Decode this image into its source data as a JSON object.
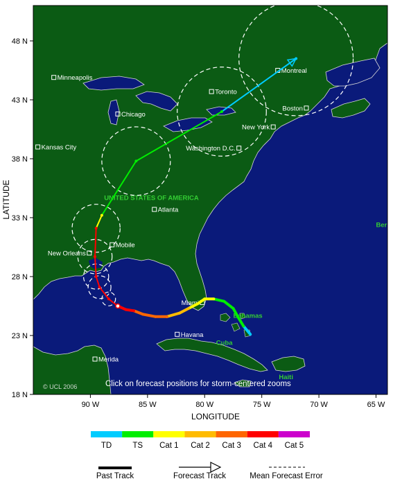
{
  "map": {
    "lon_range": [
      -95,
      -64
    ],
    "lat_range": [
      18,
      51
    ],
    "colors": {
      "ocean": "#0a1a7a",
      "land": "#0b5b14",
      "border": "#d8d8d8"
    },
    "note": "Click on forecast positions for storm-centered zooms",
    "copyright": "© UCL 2006"
  },
  "axes": {
    "x_title": "LONGITUDE",
    "y_title": "LATITUDE",
    "x_ticks": [
      {
        "lon": -90,
        "label": "90 W"
      },
      {
        "lon": -85,
        "label": "85 W"
      },
      {
        "lon": -80,
        "label": "80 W"
      },
      {
        "lon": -75,
        "label": "75 W"
      },
      {
        "lon": -70,
        "label": "70 W"
      },
      {
        "lon": -65,
        "label": "65 W"
      }
    ],
    "y_ticks": [
      {
        "lat": 18,
        "label": "18 N"
      },
      {
        "lat": 23,
        "label": "23 N"
      },
      {
        "lat": 28,
        "label": "28 N"
      },
      {
        "lat": 33,
        "label": "33 N"
      },
      {
        "lat": 38,
        "label": "38 N"
      },
      {
        "lat": 43,
        "label": "43 N"
      },
      {
        "lat": 48,
        "label": "48 N"
      }
    ]
  },
  "cities": [
    {
      "name": "Minneapolis",
      "lon": -93.2,
      "lat": 44.9
    },
    {
      "name": "Chicago",
      "lon": -87.6,
      "lat": 41.8
    },
    {
      "name": "Kansas City",
      "lon": -94.6,
      "lat": 39.0
    },
    {
      "name": "Toronto",
      "lon": -79.4,
      "lat": 43.7
    },
    {
      "name": "Montreal",
      "lon": -73.6,
      "lat": 45.5
    },
    {
      "name": "Boston",
      "lon": -71.1,
      "lat": 42.3
    },
    {
      "name": "New York",
      "lon": -74.0,
      "lat": 40.7
    },
    {
      "name": "Washington D.C.",
      "lon": -77.0,
      "lat": 38.9
    },
    {
      "name": "Atlanta",
      "lon": -84.4,
      "lat": 33.7
    },
    {
      "name": "Mobile",
      "lon": -88.1,
      "lat": 30.7
    },
    {
      "name": "New Orleans",
      "lon": -90.1,
      "lat": 30.0
    },
    {
      "name": "Miami",
      "lon": -80.2,
      "lat": 25.8
    },
    {
      "name": "Havana",
      "lon": -82.4,
      "lat": 23.1
    },
    {
      "name": "Merida",
      "lon": -89.6,
      "lat": 21.0
    }
  ],
  "region_labels": [
    {
      "name": "UNITED STATES OF AMERICA",
      "lon": -88.8,
      "lat": 34.5,
      "color": "#33cc33"
    },
    {
      "name": "Bermuda",
      "lon": -65.0,
      "lat": 32.2,
      "color": "#33cc33"
    },
    {
      "name": "Bahamas",
      "lon": -77.5,
      "lat": 24.5,
      "color": "#33cc33"
    },
    {
      "name": "Cuba",
      "lon": -79.0,
      "lat": 22.2,
      "color": "#33cc33"
    },
    {
      "name": "Haiti",
      "lon": -73.5,
      "lat": 19.3,
      "color": "#33cc33"
    }
  ],
  "track": {
    "past": [
      {
        "lon": -76.0,
        "lat": 23.1,
        "cat": "TD"
      },
      {
        "lon": -76.6,
        "lat": 23.8,
        "cat": "TD"
      },
      {
        "lon": -77.1,
        "lat": 24.6,
        "cat": "TS"
      },
      {
        "lon": -77.5,
        "lat": 25.3,
        "cat": "TS"
      },
      {
        "lon": -78.3,
        "lat": 25.9,
        "cat": "TS"
      },
      {
        "lon": -79.2,
        "lat": 26.1,
        "cat": "TS"
      },
      {
        "lon": -80.0,
        "lat": 26.1,
        "cat": "Cat 1"
      },
      {
        "lon": -80.6,
        "lat": 25.7,
        "cat": "Cat 1"
      },
      {
        "lon": -81.4,
        "lat": 25.3,
        "cat": "Cat 1"
      },
      {
        "lon": -82.2,
        "lat": 24.9,
        "cat": "Cat 2"
      },
      {
        "lon": -83.3,
        "lat": 24.6,
        "cat": "Cat 2"
      },
      {
        "lon": -84.3,
        "lat": 24.6,
        "cat": "Cat 3"
      },
      {
        "lon": -85.4,
        "lat": 24.8,
        "cat": "Cat 3"
      },
      {
        "lon": -86.2,
        "lat": 25.1,
        "cat": "Cat 3"
      },
      {
        "lon": -86.9,
        "lat": 25.2,
        "cat": "Cat 4"
      },
      {
        "lon": -87.6,
        "lat": 25.5,
        "cat": "Cat 4"
      }
    ],
    "forecast": [
      {
        "lon": -87.6,
        "lat": 25.5,
        "cat": "Cat 4",
        "err": 0
      },
      {
        "lon": -88.4,
        "lat": 26.1,
        "cat": "Cat 4",
        "err": 0.6
      },
      {
        "lon": -89.2,
        "lat": 27.1,
        "cat": "Cat 4",
        "err": 1.0
      },
      {
        "lon": -89.5,
        "lat": 28.0,
        "cat": "Cat 4",
        "err": 1.1
      },
      {
        "lon": -89.6,
        "lat": 29.7,
        "cat": "Cat 4",
        "err": 1.5
      },
      {
        "lon": -89.5,
        "lat": 32.1,
        "cat": "Cat 4",
        "err": 2.1
      },
      {
        "lon": -89.0,
        "lat": 33.2,
        "cat": "Cat 1",
        "err": 0
      },
      {
        "lon": -86.0,
        "lat": 37.8,
        "cat": "TS",
        "err": 3.0
      },
      {
        "lon": -78.5,
        "lat": 42.0,
        "cat": "TS",
        "err": 3.9
      },
      {
        "lon": -72.0,
        "lat": 46.5,
        "cat": "TD",
        "err": 5.0
      }
    ]
  },
  "legend": {
    "categories": [
      {
        "label": "TD",
        "color": "#00ccff"
      },
      {
        "label": "TS",
        "color": "#00ee00"
      },
      {
        "label": "Cat 1",
        "color": "#ffff00"
      },
      {
        "label": "Cat 2",
        "color": "#ffbb00"
      },
      {
        "label": "Cat 3",
        "color": "#ff6600"
      },
      {
        "label": "Cat 4",
        "color": "#ff0000"
      },
      {
        "label": "Cat 5",
        "color": "#cc00cc"
      }
    ],
    "keys": {
      "past_track": "Past Track",
      "forecast_track": "Forecast Track",
      "mean_error": "Mean Forecast Error"
    }
  }
}
